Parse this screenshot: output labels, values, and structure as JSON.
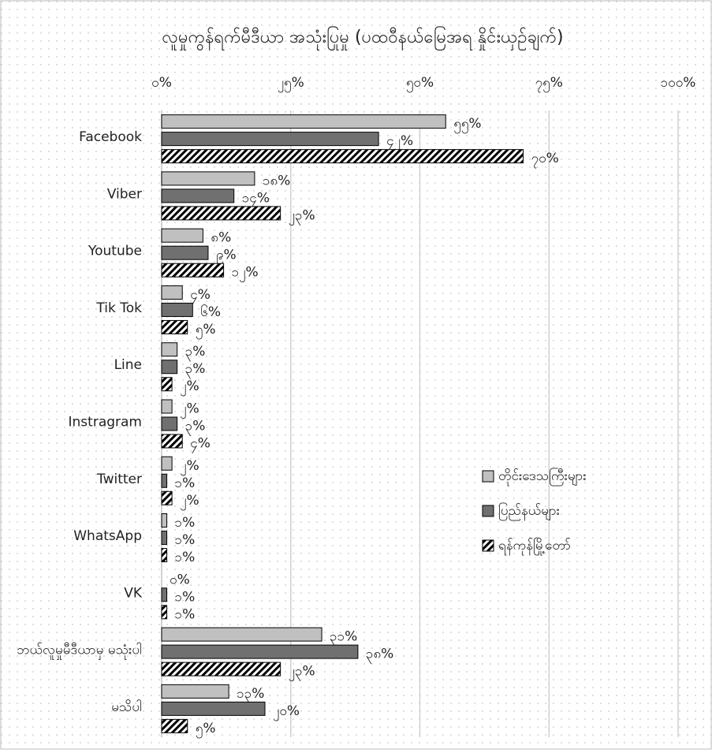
{
  "chart_data": {
    "type": "hbar",
    "title": "လူမှုကွန်ရက်မီဒီယာ အသုံးပြုမှု (ပထဝီနယ်မြေအရ နှိုင်းယှဉ်ချက်)",
    "categories": [
      "Facebook",
      "Viber",
      "Youtube",
      "Tik Tok",
      "Line",
      "Instragram",
      "Twitter",
      "WhatsApp",
      "VK",
      "ဘယ်လူမှုမီဒီယာမှ မသုံးပါ",
      "မသိပါ"
    ],
    "series": [
      {
        "name": "တိုင်းဒေသကြီးများ",
        "color": "#c0c0c0",
        "values": [
          55,
          18,
          8,
          4,
          3,
          2,
          2,
          1,
          0,
          31,
          13
        ],
        "value_labels": [
          "၅၅%",
          "၁၈%",
          "၈%",
          "၄%",
          "၃%",
          "၂%",
          "၂%",
          "၁%",
          "၀%",
          "၃၁%",
          "၁၃%"
        ]
      },
      {
        "name": "ပြည်နယ်များ",
        "color": "#707070",
        "values": [
          42,
          14,
          9,
          6,
          3,
          3,
          1,
          1,
          1,
          38,
          20
        ],
        "value_labels": [
          "၄၂%",
          "၁၄%",
          "၉%",
          "၆%",
          "၃%",
          "၃%",
          "၁%",
          "၁%",
          "၁%",
          "၃၈%",
          "၂၀%"
        ]
      },
      {
        "name": "ရန်ကုန်မြို့တော်",
        "color": "#000000",
        "hatch": true,
        "values": [
          70,
          23,
          12,
          5,
          2,
          4,
          2,
          1,
          1,
          23,
          5
        ],
        "value_labels": [
          "၇၀%",
          "၂၃%",
          "၁၂%",
          "၅%",
          "၂%",
          "၄%",
          "၂%",
          "၁%",
          "၁%",
          "၂၃%",
          "၅%"
        ]
      }
    ],
    "xlim": [
      0,
      100
    ],
    "xticks": [
      {
        "value": 0,
        "label": "၀%"
      },
      {
        "value": 25,
        "label": "၂၅%"
      },
      {
        "value": 50,
        "label": "၅၀%"
      },
      {
        "value": 75,
        "label": "၇၅%"
      },
      {
        "value": 100,
        "label": "၁၀၀%"
      }
    ],
    "grid": true,
    "legend": "right"
  }
}
